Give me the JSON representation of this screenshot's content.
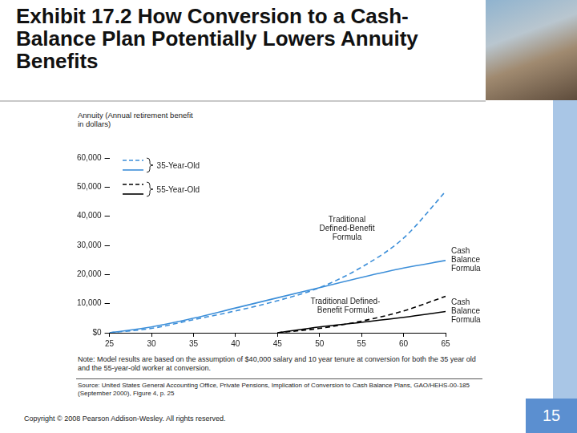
{
  "slide": {
    "title": "Exhibit 17.2 How Conversion to a Cash-Balance Plan Potentially Lowers Annuity Benefits",
    "copyright": "Copyright © 2008 Pearson Addison-Wesley. All rights reserved.",
    "page_number": 15
  },
  "chart_data": {
    "type": "line",
    "y_label": "Annuity (Annual retirement benefit in dollars)",
    "x": [
      25,
      30,
      35,
      40,
      45,
      50,
      55,
      60,
      65
    ],
    "xlim": [
      25,
      65
    ],
    "xticks": [
      25,
      30,
      35,
      40,
      45,
      50,
      55,
      60,
      65
    ],
    "ylim": [
      0,
      60000
    ],
    "yticks": [
      {
        "value": 0,
        "label": "$0"
      },
      {
        "value": 10000,
        "label": "10,000"
      },
      {
        "value": 20000,
        "label": "20,000"
      },
      {
        "value": 30000,
        "label": "30,000"
      },
      {
        "value": 40000,
        "label": "40,000"
      },
      {
        "value": 50000,
        "label": "50,000"
      },
      {
        "value": 60000,
        "label": "60,000"
      }
    ],
    "grid": false,
    "legend": "upper left",
    "series": [
      {
        "name": "35-Year-Old",
        "label": "Traditional Defined-Benefit Formula",
        "color": "#3d8fd9",
        "line_style": "dashed",
        "values": [
          0,
          1500,
          4500,
          7500,
          11000,
          15500,
          22500,
          32500,
          48500
        ]
      },
      {
        "name": "35-Year-Old",
        "label": "Cash Balance Formula",
        "color": "#3d8fd9",
        "line_style": "solid",
        "values": [
          0,
          2000,
          5000,
          8500,
          12000,
          15500,
          19000,
          22200,
          24800
        ]
      },
      {
        "name": "55-Year-Old",
        "label": "Traditional Defined-Benefit Formula",
        "color": "#000000",
        "line_style": "dashed",
        "values": [
          null,
          null,
          null,
          null,
          0,
          1500,
          4000,
          7500,
          12500
        ]
      },
      {
        "name": "55-Year-Old",
        "label": "Cash Balance Formula",
        "color": "#000000",
        "line_style": "solid",
        "values": [
          null,
          null,
          null,
          null,
          0,
          2000,
          3600,
          5300,
          7300
        ]
      }
    ],
    "note": "Note: Model results are based on the assumption of $40,000 salary and 10 year tenure at conversion for both the 35 year old and the 55-year-old worker at conversion.",
    "source": "Source: United States General Accounting Office, Private Pensions, Implication of Conversion to Cash Balance Plans, GAO/HEHS-00-185 (September 2000), Figure 4, p. 25"
  }
}
